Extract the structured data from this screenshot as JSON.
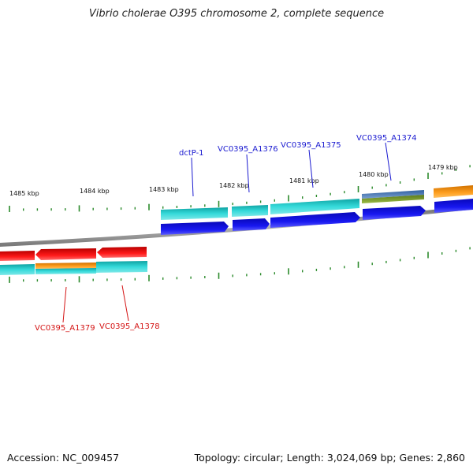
{
  "title": "Vibrio cholerae O395 chromosome 2, complete sequence",
  "footer": {
    "accession": "Accession: NC_009457",
    "topology": "Topology: circular; Length: 3,024,069 bp; Genes: 2,860"
  },
  "colors": {
    "backbone": "#8a8a8a",
    "tick": "#2b8a2b",
    "cds_forward": "#1010e0",
    "gene_teal": "#22c4c4",
    "cds_reverse": "#e01010",
    "orange": "#f39a1a",
    "olive": "#7a9a30",
    "steel": "#4a7ab0",
    "label_forward": "#1a1ad0",
    "label_reverse": "#d41414"
  },
  "scale_labels": [
    "1485 kbp",
    "1484 kbp",
    "1483 kbp",
    "1482 kbp",
    "1481 kbp",
    "1480 kbp",
    "1479 kbp"
  ],
  "forward_gene_labels": [
    "dctP-1",
    "VC0395_A1376",
    "VC0395_A1375",
    "VC0395_A1374"
  ],
  "reverse_gene_labels": [
    "VC0395_A1379",
    "VC0395_A1378"
  ]
}
